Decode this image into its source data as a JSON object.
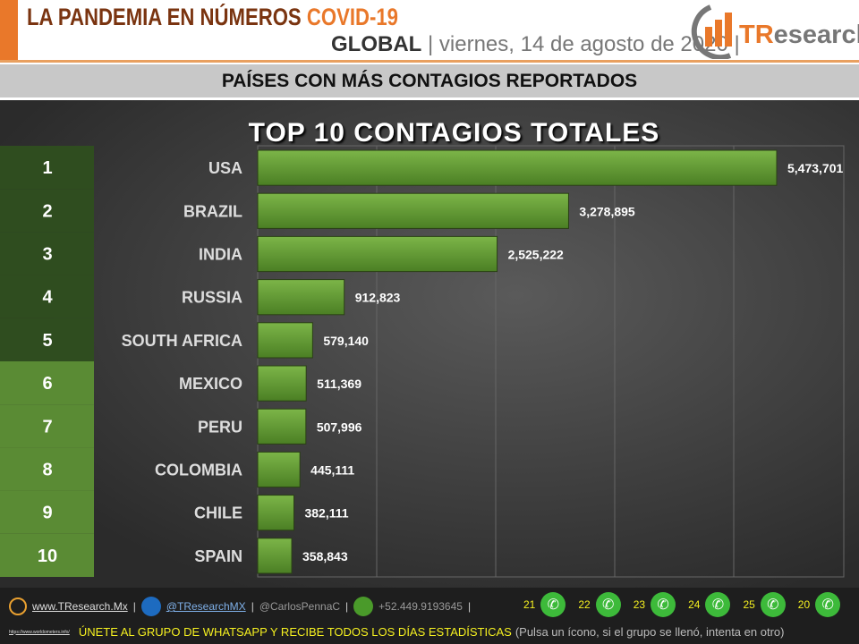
{
  "header": {
    "title_main": "LA PANDEMIA EN NÚMEROS",
    "title_accent": "COVID-19",
    "scope": "GLOBAL",
    "date": "viernes, 14 de agosto de 2020",
    "logo_text": "TResearch"
  },
  "band_title": "PAÍSES CON MÁS CONTAGIOS REPORTADOS",
  "colors": {
    "orange": "#e9782a",
    "bar_green": "#5e9a2e",
    "rank_dark": "#2f4d1f",
    "rank_light": "#5a8b34"
  },
  "chart_data": {
    "type": "bar",
    "orientation": "horizontal",
    "title": "TOP 10 CONTAGIOS TOTALES",
    "ranks": [
      "1",
      "2",
      "3",
      "4",
      "5",
      "6",
      "7",
      "8",
      "9",
      "10"
    ],
    "categories": [
      "USA",
      "BRAZIL",
      "INDIA",
      "RUSSIA",
      "SOUTH AFRICA",
      "MEXICO",
      "PERU",
      "COLOMBIA",
      "CHILE",
      "SPAIN"
    ],
    "values": [
      5473701,
      3278895,
      2525222,
      912823,
      579140,
      511369,
      507996,
      445111,
      382111,
      358843
    ],
    "value_labels": [
      "5,473,701",
      "3,278,895",
      "2,525,222",
      "912,823",
      "579,140",
      "511,369",
      "507,996",
      "445,111",
      "382,111",
      "358,843"
    ],
    "grid": true
  },
  "footer": {
    "website": "www.TResearch.Mx",
    "twitter": "@TResearchMX",
    "user": "@CarlosPennaC",
    "phone": "+52.449.9193645",
    "whatsapp_groups": [
      "21",
      "22",
      "23",
      "24",
      "25",
      "20"
    ],
    "source": "https://www.worldometers.info/",
    "cta": "ÚNETE AL GRUPO DE WHATSAPP Y RECIBE TODOS LOS DÍAS ESTADÍSTICAS",
    "cta_note": "(Pulsa un ícono, si el grupo se llenó, intenta en otro)"
  }
}
